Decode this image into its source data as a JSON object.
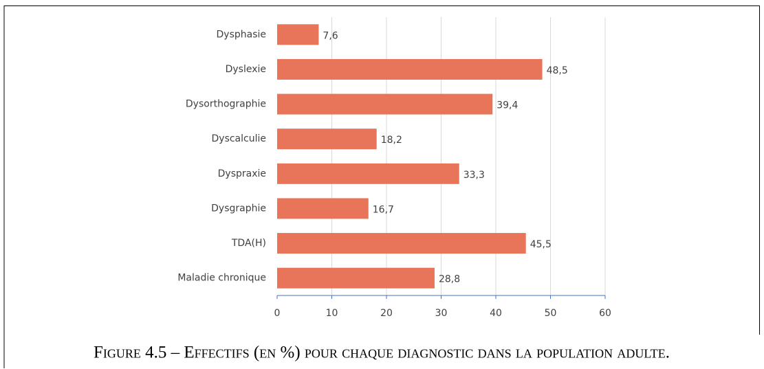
{
  "chart_data": {
    "type": "bar",
    "orientation": "horizontal",
    "caption": "Figure 4.5 – Effectifs (en %) pour chaque diagnostic dans la population adulte.",
    "categories": [
      "Dysphasie",
      "Dyslexie",
      "Dysorthographie",
      "Dyscalculie",
      "Dyspraxie",
      "Dysgraphie",
      "TDA(H)",
      "Maladie chronique"
    ],
    "values": [
      7.6,
      48.5,
      39.4,
      18.2,
      33.3,
      16.7,
      45.5,
      28.8
    ],
    "value_labels": [
      "7,6",
      "48,5",
      "39,4",
      "18,2",
      "33,3",
      "16,7",
      "45,5",
      "28,8"
    ],
    "color": "#e8755a",
    "xlim": [
      0,
      60
    ],
    "xticks": [
      0,
      10,
      20,
      30,
      40,
      50,
      60
    ],
    "grid": true
  }
}
